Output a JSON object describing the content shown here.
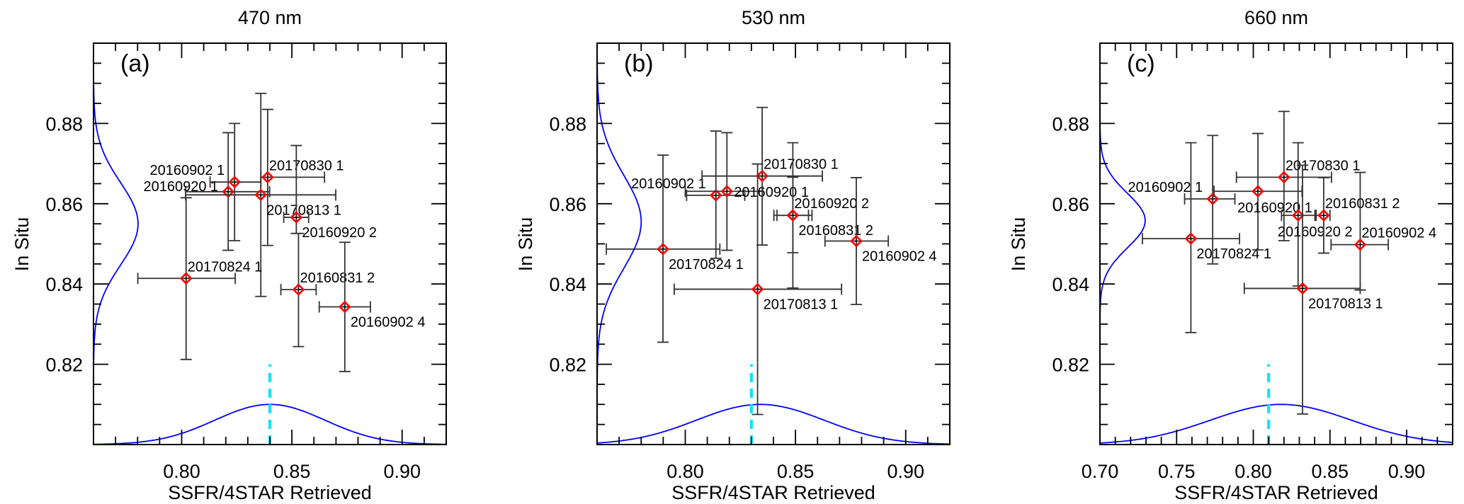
{
  "colors": {
    "marker": "#ff0000",
    "gaussian": "#0000ff",
    "mean_line": "#00e5ff",
    "errorbar": "#333333"
  },
  "chart_data": [
    {
      "type": "scatter",
      "title": "470 nm",
      "panel_label": "(a)",
      "xlabel": "SSFR/4STAR Retrieved",
      "ylabel": "In Situ",
      "xlim": [
        0.76,
        0.92
      ],
      "ylim": [
        0.8,
        0.9
      ],
      "xticks": [
        {
          "v": 0.8,
          "label": "0.80"
        },
        {
          "v": 0.85,
          "label": "0.85"
        },
        {
          "v": 0.9,
          "label": "0.90"
        }
      ],
      "yticks": [
        {
          "v": 0.82,
          "label": "0.82"
        },
        {
          "v": 0.84,
          "label": "0.84"
        },
        {
          "v": 0.86,
          "label": "0.86"
        },
        {
          "v": 0.88,
          "label": "0.88"
        }
      ],
      "mean_line_x": 0.84,
      "x_gaussian": {
        "mean": 0.84,
        "sigma": 0.025,
        "peak": 0.01
      },
      "y_gaussian": {
        "mean": 0.855,
        "sigma": 0.0103,
        "peak": 0.0202
      },
      "points": [
        {
          "label": "20160902 1",
          "x": 0.824,
          "y": 0.8654,
          "xerr": [
            0.8129,
            0.8359
          ],
          "yerr": [
            0.8508,
            0.88
          ],
          "label_pos": "nw"
        },
        {
          "label": "20160920 1",
          "x": 0.8211,
          "y": 0.863,
          "xerr": [
            0.8018,
            0.8399
          ],
          "yerr": [
            0.8484,
            0.8777
          ],
          "label_pos": "w"
        },
        {
          "label": "20170830 1",
          "x": 0.839,
          "y": 0.8666,
          "xerr": [
            0.8359,
            0.8648
          ],
          "yerr": [
            0.8496,
            0.8835
          ],
          "label_pos": "ne"
        },
        {
          "label": "20170813 1",
          "x": 0.8359,
          "y": 0.8622,
          "xerr": [
            0.8018,
            0.8699
          ],
          "yerr": [
            0.8369,
            0.8875
          ],
          "label_pos": "se"
        },
        {
          "label": "20160920 2",
          "x": 0.852,
          "y": 0.8566,
          "xerr": [
            0.8463,
            0.8576
          ],
          "yerr": [
            0.8526,
            0.8745
          ],
          "label_pos": "se"
        },
        {
          "label": "20170824 1",
          "x": 0.802,
          "y": 0.8414,
          "xerr": [
            0.7801,
            0.8243
          ],
          "yerr": [
            0.8212,
            0.8615
          ],
          "label_pos": "ne"
        },
        {
          "label": "20160831 2",
          "x": 0.853,
          "y": 0.8386,
          "xerr": [
            0.845,
            0.861
          ],
          "yerr": [
            0.8244,
            0.8526
          ],
          "label_pos": "ne"
        },
        {
          "label": "20160902 4",
          "x": 0.874,
          "y": 0.8343,
          "xerr": [
            0.8624,
            0.8856
          ],
          "yerr": [
            0.8182,
            0.8504
          ],
          "label_pos": "se"
        }
      ]
    },
    {
      "type": "scatter",
      "title": "530 nm",
      "panel_label": "(b)",
      "xlabel": "SSFR/4STAR Retrieved",
      "ylabel": "In Situ",
      "xlim": [
        0.76,
        0.92
      ],
      "ylim": [
        0.8,
        0.9
      ],
      "xticks": [
        {
          "v": 0.8,
          "label": "0.80"
        },
        {
          "v": 0.85,
          "label": "0.85"
        },
        {
          "v": 0.9,
          "label": "0.90"
        }
      ],
      "yticks": [
        {
          "v": 0.82,
          "label": "0.82"
        },
        {
          "v": 0.84,
          "label": "0.84"
        },
        {
          "v": 0.86,
          "label": "0.86"
        },
        {
          "v": 0.88,
          "label": "0.88"
        }
      ],
      "mean_line_x": 0.83,
      "x_gaussian": {
        "mean": 0.834,
        "sigma": 0.029,
        "peak": 0.01
      },
      "y_gaussian": {
        "mean": 0.8555,
        "sigma": 0.0116,
        "peak": 0.02
      },
      "points": [
        {
          "label": "20160902 1",
          "x": 0.8139,
          "y": 0.8621,
          "xerr": [
            0.8006,
            0.827
          ],
          "yerr": [
            0.8464,
            0.8781
          ],
          "label_pos": "nw"
        },
        {
          "label": "20160920 1",
          "x": 0.8189,
          "y": 0.8631,
          "xerr": [
            0.8,
            0.835
          ],
          "yerr": [
            0.8484,
            0.8777
          ],
          "label_pos": "e"
        },
        {
          "label": "20170830 1",
          "x": 0.8349,
          "y": 0.8669,
          "xerr": [
            0.8076,
            0.8622
          ],
          "yerr": [
            0.8497,
            0.884
          ],
          "label_pos": "ne"
        },
        {
          "label": "20160920 2",
          "x": 0.8488,
          "y": 0.8571,
          "xerr": [
            0.8402,
            0.8575
          ],
          "yerr": [
            0.839,
            0.8752
          ],
          "label_pos": "ne"
        },
        {
          "label": "20160831 2",
          "x": 0.8488,
          "y": 0.8571,
          "xerr": [
            0.8416,
            0.8559
          ],
          "yerr": [
            0.8478,
            0.8666
          ],
          "label_pos": "se"
        },
        {
          "label": "20160902 4",
          "x": 0.8776,
          "y": 0.8507,
          "xerr": [
            0.8634,
            0.8921
          ],
          "yerr": [
            0.8349,
            0.8665
          ],
          "label_pos": "se"
        },
        {
          "label": "20170824 1",
          "x": 0.7899,
          "y": 0.8487,
          "xerr": [
            0.7642,
            0.8157
          ],
          "yerr": [
            0.8255,
            0.8721
          ],
          "label_pos": "se"
        },
        {
          "label": "20170813 1",
          "x": 0.8328,
          "y": 0.8387,
          "xerr": [
            0.795,
            0.8709
          ],
          "yerr": [
            0.8075,
            0.8699
          ],
          "label_pos": "se"
        }
      ]
    },
    {
      "type": "scatter",
      "title": "660 nm",
      "panel_label": "(c)",
      "xlabel": "SSFR/4STAR Retrieved",
      "ylabel": "In Situ",
      "xlim": [
        0.7,
        0.93
      ],
      "ylim": [
        0.8,
        0.9
      ],
      "xticks": [
        {
          "v": 0.7,
          "label": "0.70"
        },
        {
          "v": 0.75,
          "label": "0.75"
        },
        {
          "v": 0.8,
          "label": "0.80"
        },
        {
          "v": 0.85,
          "label": "0.85"
        },
        {
          "v": 0.9,
          "label": "0.90"
        }
      ],
      "yticks": [
        {
          "v": 0.82,
          "label": "0.82"
        },
        {
          "v": 0.84,
          "label": "0.84"
        },
        {
          "v": 0.86,
          "label": "0.86"
        },
        {
          "v": 0.88,
          "label": "0.88"
        }
      ],
      "mean_line_x": 0.81,
      "x_gaussian": {
        "mean": 0.818,
        "sigma": 0.046,
        "peak": 0.01
      },
      "y_gaussian": {
        "mean": 0.8558,
        "sigma": 0.0068,
        "peak": 0.0295
      },
      "points": [
        {
          "label": "20160902 1",
          "x": 0.7735,
          "y": 0.8612,
          "xerr": [
            0.7552,
            0.788
          ],
          "yerr": [
            0.845,
            0.877
          ],
          "label_pos": "nw"
        },
        {
          "label": "20170824 1",
          "x": 0.7593,
          "y": 0.8513,
          "xerr": [
            0.7277,
            0.791
          ],
          "yerr": [
            0.8279,
            0.8752
          ],
          "label_pos": "se"
        },
        {
          "label": "20160920 1",
          "x": 0.803,
          "y": 0.8631,
          "xerr": [
            0.7744,
            0.8318
          ],
          "yerr": [
            0.8485,
            0.8775
          ],
          "label_pos": "s"
        },
        {
          "label": "20170830 1",
          "x": 0.82,
          "y": 0.8666,
          "xerr": [
            0.789,
            0.851
          ],
          "yerr": [
            0.8508,
            0.883
          ],
          "label_pos": "ne"
        },
        {
          "label": "20160920 2",
          "x": 0.8292,
          "y": 0.8571,
          "xerr": [
            0.8184,
            0.8402
          ],
          "yerr": [
            0.8395,
            0.8752
          ],
          "label_pos": "s"
        },
        {
          "label": "20160831 2",
          "x": 0.8459,
          "y": 0.8571,
          "xerr": [
            0.841,
            0.85
          ],
          "yerr": [
            0.8477,
            0.8665
          ],
          "label_pos": "ne"
        },
        {
          "label": "20160902 4",
          "x": 0.8697,
          "y": 0.8498,
          "xerr": [
            0.8507,
            0.888
          ],
          "yerr": [
            0.8385,
            0.8678
          ],
          "label_pos": "ne"
        },
        {
          "label": "20170813 1",
          "x": 0.8321,
          "y": 0.8389,
          "xerr": [
            0.7941,
            0.8697
          ],
          "yerr": [
            0.8076,
            0.8696
          ],
          "label_pos": "se"
        }
      ]
    }
  ]
}
